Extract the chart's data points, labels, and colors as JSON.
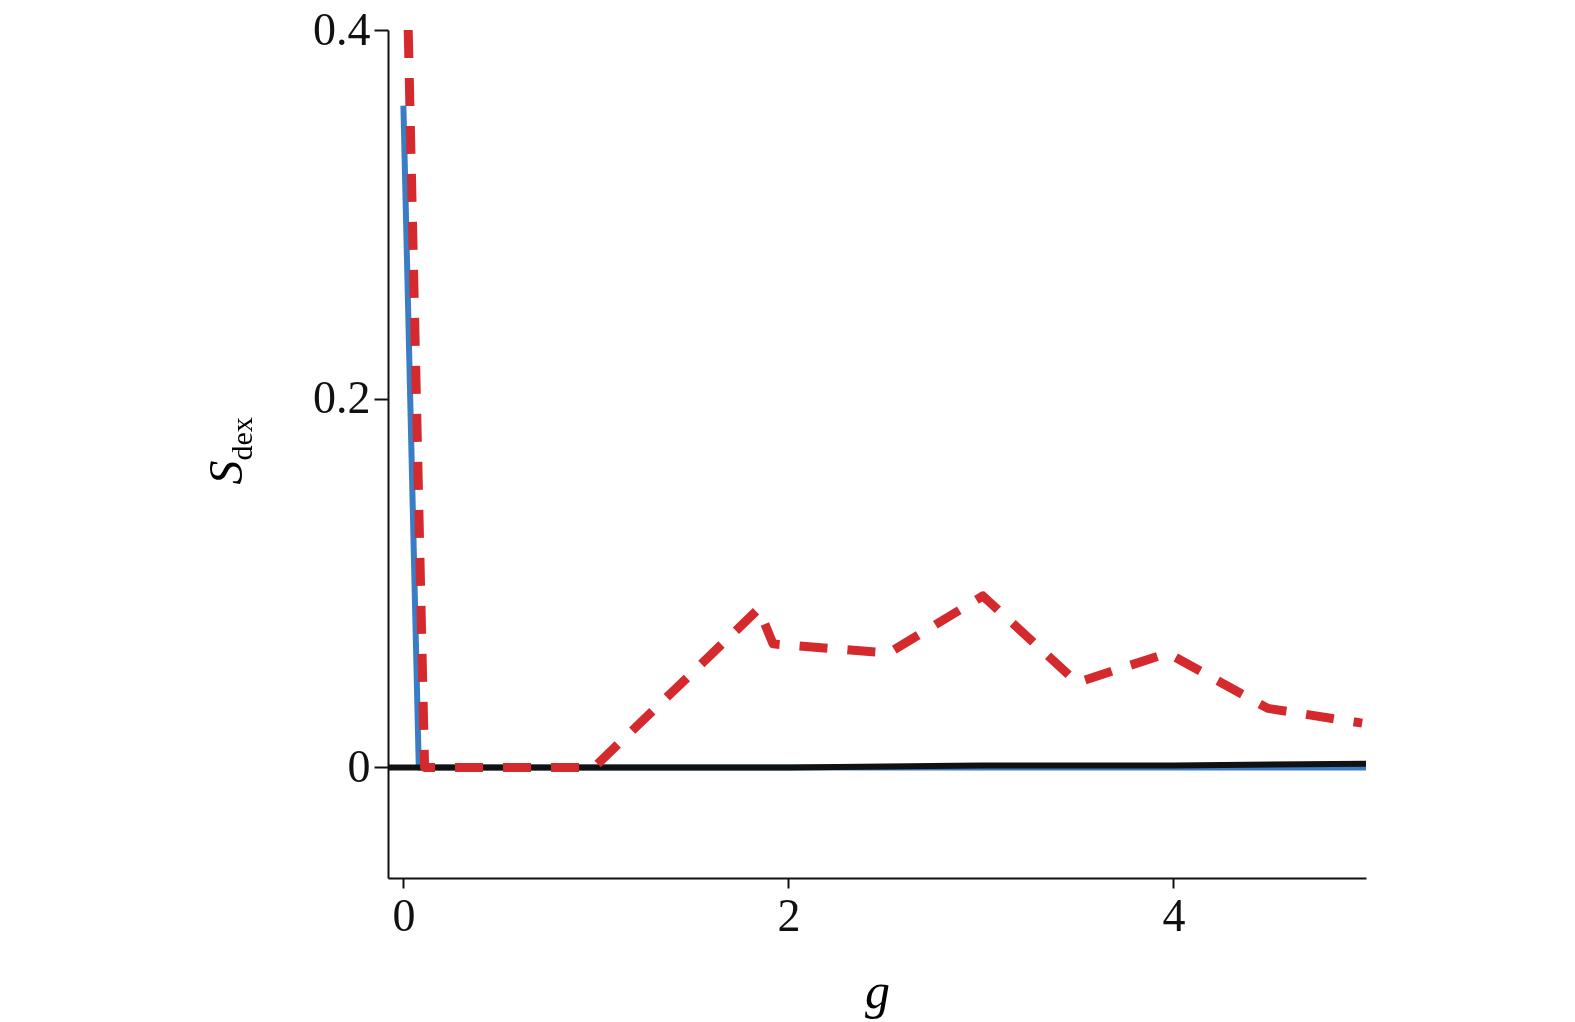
{
  "chart_data": {
    "type": "line",
    "xlabel": "g",
    "ylabel": "S$_{dex}$",
    "xlim": [
      -0.08,
      5.0
    ],
    "ylim": [
      -0.06,
      0.4
    ],
    "xticks": [
      0,
      2,
      4
    ],
    "yticks": [
      0,
      0.2,
      0.4
    ],
    "grid": false,
    "series": [
      {
        "color": "#3b7dc4",
        "line_style": "solid",
        "x": [
          0,
          0.08,
          1,
          2,
          3,
          4,
          5
        ],
        "values": [
          0.359,
          0,
          0,
          0,
          0,
          0,
          0
        ]
      },
      {
        "color": "#111111",
        "line_style": "solid",
        "x": [
          -0.08,
          1,
          2,
          3,
          4,
          5
        ],
        "values": [
          0,
          0,
          0,
          0.001,
          0.001,
          0.002
        ]
      },
      {
        "color": "#d42a2e",
        "line_style": "dashed",
        "x": [
          0.025,
          0.11,
          0.99,
          1.845,
          1.92,
          2.52,
          3.01,
          3.5,
          3.97,
          4.49,
          4.98
        ],
        "values": [
          0.4,
          0,
          0,
          0.086,
          0.067,
          0.062,
          0.093,
          0.046,
          0.062,
          0.032,
          0.024
        ]
      }
    ]
  }
}
